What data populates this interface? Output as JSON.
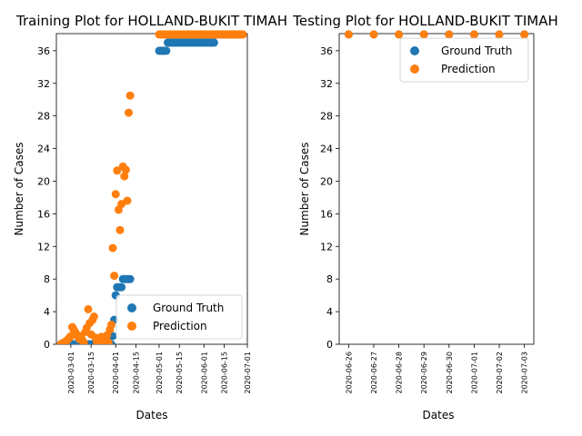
{
  "chart_data": [
    {
      "type": "scatter",
      "title": "Training Plot for HOLLAND-BUKIT TIMAH",
      "xlabel": "Dates",
      "ylabel": "Number of Cases",
      "x_is_date": true,
      "xlim": [
        "2020-02-20",
        "2020-07-01"
      ],
      "ylim": [
        0,
        38.1
      ],
      "xticks": [
        "2020-03-01",
        "2020-03-15",
        "2020-04-01",
        "2020-04-15",
        "2020-05-01",
        "2020-05-15",
        "2020-06-01",
        "2020-06-15",
        "2020-07-01"
      ],
      "yticks": [
        0,
        4,
        8,
        12,
        16,
        20,
        24,
        28,
        32,
        36
      ],
      "legend": {
        "position": "lower-right",
        "entries": [
          "Ground Truth",
          "Prediction"
        ]
      },
      "colors": {
        "ground_truth": "#1f77b4",
        "prediction": "#ff7f0e"
      },
      "series": [
        {
          "name": "Ground Truth",
          "points": [
            [
              "2020-02-23",
              0
            ],
            [
              "2020-02-24",
              0
            ],
            [
              "2020-02-25",
              0
            ],
            [
              "2020-02-26",
              0
            ],
            [
              "2020-02-27",
              0
            ],
            [
              "2020-02-28",
              0
            ],
            [
              "2020-02-29",
              0
            ],
            [
              "2020-03-01",
              0
            ],
            [
              "2020-03-02",
              0
            ],
            [
              "2020-03-03",
              0
            ],
            [
              "2020-03-04",
              0
            ],
            [
              "2020-03-05",
              0
            ],
            [
              "2020-03-06",
              0
            ],
            [
              "2020-03-07",
              0
            ],
            [
              "2020-03-08",
              0
            ],
            [
              "2020-03-09",
              0
            ],
            [
              "2020-03-10",
              0
            ],
            [
              "2020-03-11",
              0
            ],
            [
              "2020-03-12",
              0
            ],
            [
              "2020-03-13",
              0
            ],
            [
              "2020-03-14",
              0
            ],
            [
              "2020-03-15",
              0
            ],
            [
              "2020-03-16",
              0
            ],
            [
              "2020-03-17",
              0
            ],
            [
              "2020-03-18",
              0
            ],
            [
              "2020-03-19",
              0
            ],
            [
              "2020-03-20",
              0
            ],
            [
              "2020-03-21",
              0
            ],
            [
              "2020-03-22",
              0
            ],
            [
              "2020-03-23",
              0
            ],
            [
              "2020-03-24",
              0
            ],
            [
              "2020-03-25",
              0
            ],
            [
              "2020-03-26",
              0
            ],
            [
              "2020-03-27",
              0
            ],
            [
              "2020-03-28",
              0
            ],
            [
              "2020-03-29",
              0
            ],
            [
              "2020-03-30",
              1
            ],
            [
              "2020-03-31",
              3
            ],
            [
              "2020-04-01",
              6
            ],
            [
              "2020-04-02",
              7
            ],
            [
              "2020-04-03",
              7
            ],
            [
              "2020-04-04",
              7
            ],
            [
              "2020-04-05",
              7
            ],
            [
              "2020-04-06",
              8
            ],
            [
              "2020-04-07",
              8
            ],
            [
              "2020-04-08",
              8
            ],
            [
              "2020-04-09",
              8
            ],
            [
              "2020-04-10",
              8
            ],
            [
              "2020-04-11",
              8
            ],
            [
              "2020-05-01",
              36
            ],
            [
              "2020-05-02",
              36
            ],
            [
              "2020-05-03",
              36
            ],
            [
              "2020-05-04",
              36
            ],
            [
              "2020-05-05",
              36
            ],
            [
              "2020-05-06",
              36
            ],
            [
              "2020-05-07",
              37
            ],
            [
              "2020-05-08",
              37
            ],
            [
              "2020-05-09",
              37
            ],
            [
              "2020-05-10",
              37
            ],
            [
              "2020-05-11",
              37
            ],
            [
              "2020-05-12",
              37
            ],
            [
              "2020-05-13",
              37
            ],
            [
              "2020-05-14",
              37
            ],
            [
              "2020-05-15",
              37
            ],
            [
              "2020-05-16",
              37
            ],
            [
              "2020-05-17",
              37
            ],
            [
              "2020-05-18",
              37
            ],
            [
              "2020-05-19",
              37
            ],
            [
              "2020-05-20",
              37
            ],
            [
              "2020-05-21",
              37
            ],
            [
              "2020-05-22",
              37
            ],
            [
              "2020-05-23",
              37
            ],
            [
              "2020-05-24",
              37
            ],
            [
              "2020-05-25",
              37
            ],
            [
              "2020-05-26",
              37
            ],
            [
              "2020-05-27",
              37
            ],
            [
              "2020-05-28",
              37
            ],
            [
              "2020-05-29",
              37
            ],
            [
              "2020-05-30",
              37
            ],
            [
              "2020-05-31",
              37
            ],
            [
              "2020-06-01",
              37
            ],
            [
              "2020-06-02",
              37
            ],
            [
              "2020-06-03",
              37
            ],
            [
              "2020-06-04",
              37
            ],
            [
              "2020-06-05",
              37
            ],
            [
              "2020-06-06",
              37
            ],
            [
              "2020-06-07",
              37
            ],
            [
              "2020-06-08",
              37
            ],
            [
              "2020-06-09",
              38
            ],
            [
              "2020-06-10",
              38
            ],
            [
              "2020-06-11",
              38
            ],
            [
              "2020-06-12",
              38
            ],
            [
              "2020-06-13",
              38
            ],
            [
              "2020-06-14",
              38
            ],
            [
              "2020-06-15",
              38
            ],
            [
              "2020-06-16",
              38
            ],
            [
              "2020-06-17",
              38
            ],
            [
              "2020-06-18",
              38
            ],
            [
              "2020-06-19",
              38
            ],
            [
              "2020-06-20",
              38
            ],
            [
              "2020-06-21",
              38
            ],
            [
              "2020-06-22",
              38
            ],
            [
              "2020-06-23",
              38
            ],
            [
              "2020-06-24",
              38
            ],
            [
              "2020-06-25",
              38
            ]
          ]
        },
        {
          "name": "Prediction",
          "points": [
            [
              "2020-02-23",
              0
            ],
            [
              "2020-02-24",
              0.1
            ],
            [
              "2020-02-25",
              0.2
            ],
            [
              "2020-02-26",
              0.3
            ],
            [
              "2020-02-27",
              0.4
            ],
            [
              "2020-02-28",
              0.6
            ],
            [
              "2020-02-29",
              0.8
            ],
            [
              "2020-03-01",
              1.0
            ],
            [
              "2020-03-02",
              2.1
            ],
            [
              "2020-03-03",
              1.8
            ],
            [
              "2020-03-04",
              1.5
            ],
            [
              "2020-03-05",
              1.2
            ],
            [
              "2020-03-06",
              0.9
            ],
            [
              "2020-03-07",
              0.6
            ],
            [
              "2020-03-08",
              1.0
            ],
            [
              "2020-03-09",
              0.5
            ],
            [
              "2020-03-10",
              0.2
            ],
            [
              "2020-03-11",
              1.5
            ],
            [
              "2020-03-12",
              2.0
            ],
            [
              "2020-03-13",
              4.3
            ],
            [
              "2020-03-14",
              2.6
            ],
            [
              "2020-03-15",
              1.2
            ],
            [
              "2020-03-16",
              3.0
            ],
            [
              "2020-03-17",
              3.4
            ],
            [
              "2020-03-18",
              0.8
            ],
            [
              "2020-03-19",
              0.3
            ],
            [
              "2020-03-20",
              0.2
            ],
            [
              "2020-03-21",
              0.4
            ],
            [
              "2020-03-22",
              0.9
            ],
            [
              "2020-03-23",
              0.5
            ],
            [
              "2020-03-24",
              0.3
            ],
            [
              "2020-03-25",
              0.7
            ],
            [
              "2020-03-26",
              1.1
            ],
            [
              "2020-03-27",
              0.2
            ],
            [
              "2020-03-28",
              1.8
            ],
            [
              "2020-03-29",
              2.4
            ],
            [
              "2020-03-30",
              11.8
            ],
            [
              "2020-03-31",
              8.4
            ],
            [
              "2020-04-01",
              18.4
            ],
            [
              "2020-04-02",
              21.3
            ],
            [
              "2020-04-03",
              16.5
            ],
            [
              "2020-04-04",
              14.0
            ],
            [
              "2020-04-05",
              17.2
            ],
            [
              "2020-04-06",
              21.8
            ],
            [
              "2020-04-07",
              20.6
            ],
            [
              "2020-04-08",
              21.4
            ],
            [
              "2020-04-09",
              17.6
            ],
            [
              "2020-04-10",
              28.4
            ],
            [
              "2020-04-11",
              30.5
            ],
            [
              "2020-05-01",
              38
            ],
            [
              "2020-05-02",
              38
            ],
            [
              "2020-05-03",
              38
            ],
            [
              "2020-05-04",
              38
            ],
            [
              "2020-05-05",
              38
            ],
            [
              "2020-05-06",
              38
            ],
            [
              "2020-05-07",
              38
            ],
            [
              "2020-05-08",
              38
            ],
            [
              "2020-05-09",
              38
            ],
            [
              "2020-05-10",
              38
            ],
            [
              "2020-05-11",
              38
            ],
            [
              "2020-05-12",
              38
            ],
            [
              "2020-05-13",
              38
            ],
            [
              "2020-05-14",
              38
            ],
            [
              "2020-05-15",
              38
            ],
            [
              "2020-05-16",
              38
            ],
            [
              "2020-05-17",
              38
            ],
            [
              "2020-05-18",
              38
            ],
            [
              "2020-05-19",
              38
            ],
            [
              "2020-05-20",
              38
            ],
            [
              "2020-05-21",
              38
            ],
            [
              "2020-05-22",
              38
            ],
            [
              "2020-05-23",
              38
            ],
            [
              "2020-05-24",
              38
            ],
            [
              "2020-05-25",
              38
            ],
            [
              "2020-05-26",
              38
            ],
            [
              "2020-05-27",
              38
            ],
            [
              "2020-05-28",
              38
            ],
            [
              "2020-05-29",
              38
            ],
            [
              "2020-05-30",
              38
            ],
            [
              "2020-05-31",
              38
            ],
            [
              "2020-06-01",
              38
            ],
            [
              "2020-06-02",
              38
            ],
            [
              "2020-06-03",
              38
            ],
            [
              "2020-06-04",
              38
            ],
            [
              "2020-06-05",
              38
            ],
            [
              "2020-06-06",
              38
            ],
            [
              "2020-06-07",
              38
            ],
            [
              "2020-06-08",
              38
            ],
            [
              "2020-06-09",
              38
            ],
            [
              "2020-06-10",
              38
            ],
            [
              "2020-06-11",
              38
            ],
            [
              "2020-06-12",
              38
            ],
            [
              "2020-06-13",
              38
            ],
            [
              "2020-06-14",
              38
            ],
            [
              "2020-06-15",
              38
            ],
            [
              "2020-06-16",
              38
            ],
            [
              "2020-06-17",
              38
            ],
            [
              "2020-06-18",
              38
            ],
            [
              "2020-06-19",
              38
            ],
            [
              "2020-06-20",
              38
            ],
            [
              "2020-06-21",
              38
            ],
            [
              "2020-06-22",
              38
            ],
            [
              "2020-06-23",
              38
            ],
            [
              "2020-06-24",
              38
            ],
            [
              "2020-06-25",
              38
            ],
            [
              "2020-06-26",
              38
            ],
            [
              "2020-06-27",
              38
            ],
            [
              "2020-06-28",
              38
            ]
          ]
        }
      ]
    },
    {
      "type": "scatter",
      "title": "Testing Plot for HOLLAND-BUKIT TIMAH",
      "xlabel": "Dates",
      "ylabel": "Number of Cases",
      "x_is_date": true,
      "xlim": [
        "2020-06-25 15:00",
        "2020-07-03 09:00"
      ],
      "ylim": [
        0,
        38.1
      ],
      "xticks": [
        "2020-06-26",
        "2020-06-27",
        "2020-06-28",
        "2020-06-29",
        "2020-06-30",
        "2020-07-01",
        "2020-07-02",
        "2020-07-03"
      ],
      "yticks": [
        0,
        4,
        8,
        12,
        16,
        20,
        24,
        28,
        32,
        36
      ],
      "legend": {
        "position": "upper-right",
        "entries": [
          "Ground Truth",
          "Prediction"
        ]
      },
      "colors": {
        "ground_truth": "#1f77b4",
        "prediction": "#ff7f0e"
      },
      "series": [
        {
          "name": "Ground Truth",
          "points": [
            [
              "2020-06-26",
              38
            ],
            [
              "2020-06-27",
              38
            ],
            [
              "2020-06-28",
              38
            ],
            [
              "2020-06-29",
              38
            ],
            [
              "2020-06-30",
              38
            ],
            [
              "2020-07-01",
              38
            ],
            [
              "2020-07-02",
              38
            ],
            [
              "2020-07-03",
              38
            ]
          ]
        },
        {
          "name": "Prediction",
          "points": [
            [
              "2020-06-26",
              38
            ],
            [
              "2020-06-27",
              38
            ],
            [
              "2020-06-28",
              38
            ],
            [
              "2020-06-29",
              38
            ],
            [
              "2020-06-30",
              38
            ],
            [
              "2020-07-01",
              38
            ],
            [
              "2020-07-02",
              38
            ],
            [
              "2020-07-03",
              38
            ]
          ]
        }
      ]
    }
  ]
}
